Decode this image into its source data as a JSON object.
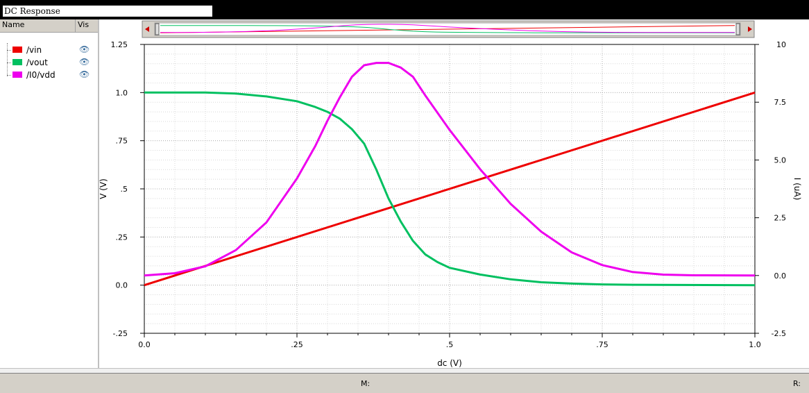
{
  "window": {
    "title": "DC Response"
  },
  "legend": {
    "header_name": "Name",
    "header_vis": "Vis",
    "items": [
      {
        "label": "/vin",
        "color": "#ee0000",
        "icon": "eye-icon"
      },
      {
        "label": "/vout",
        "color": "#00c060",
        "icon": "eye-icon"
      },
      {
        "label": "/I0/vdd",
        "color": "#ee00ee",
        "icon": "eye-icon"
      }
    ]
  },
  "status": {
    "m_label": "M:",
    "r_label": "R:"
  },
  "chart_data": {
    "type": "line",
    "xlabel": "dc (V)",
    "ylabel": "V (V)",
    "y2label": "I (uA)",
    "xlim": [
      0,
      1.0
    ],
    "ylim": [
      -0.25,
      1.25
    ],
    "y2lim": [
      -2.5,
      10
    ],
    "xticks": [
      "0.0",
      ".25",
      ".5",
      ".75",
      "1.0"
    ],
    "yticks": [
      "-.25",
      "0.0",
      ".25",
      ".5",
      ".75",
      "1.0",
      "1.25"
    ],
    "y2ticks": [
      "-2.5",
      "0.0",
      "2.5",
      "5.0",
      "7.5",
      "10"
    ],
    "grid": true,
    "series": [
      {
        "name": "/vin",
        "axis": "left",
        "color": "#ee0000",
        "x": [
          0,
          1.0
        ],
        "y": [
          0,
          1.0
        ]
      },
      {
        "name": "/vout",
        "axis": "left",
        "color": "#00c060",
        "x": [
          0,
          0.1,
          0.15,
          0.2,
          0.25,
          0.28,
          0.3,
          0.32,
          0.34,
          0.36,
          0.38,
          0.4,
          0.42,
          0.44,
          0.46,
          0.48,
          0.5,
          0.55,
          0.6,
          0.65,
          0.7,
          0.75,
          0.8,
          1.0
        ],
        "y": [
          1.0,
          1.0,
          0.995,
          0.98,
          0.955,
          0.925,
          0.9,
          0.865,
          0.81,
          0.735,
          0.6,
          0.45,
          0.33,
          0.23,
          0.16,
          0.12,
          0.09,
          0.055,
          0.03,
          0.015,
          0.008,
          0.004,
          0.002,
          0.0
        ]
      },
      {
        "name": "/I0/vdd",
        "axis": "right",
        "color": "#ee00ee",
        "x": [
          0,
          0.05,
          0.1,
          0.15,
          0.2,
          0.25,
          0.28,
          0.3,
          0.32,
          0.34,
          0.36,
          0.38,
          0.4,
          0.42,
          0.44,
          0.46,
          0.5,
          0.55,
          0.6,
          0.65,
          0.7,
          0.75,
          0.8,
          0.85,
          0.9,
          1.0
        ],
        "y": [
          0.0,
          0.1,
          0.4,
          1.1,
          2.3,
          4.2,
          5.6,
          6.7,
          7.7,
          8.6,
          9.1,
          9.2,
          9.2,
          9.0,
          8.6,
          7.8,
          6.3,
          4.6,
          3.1,
          1.9,
          1.0,
          0.45,
          0.15,
          0.04,
          0.01,
          0.0
        ]
      }
    ]
  }
}
